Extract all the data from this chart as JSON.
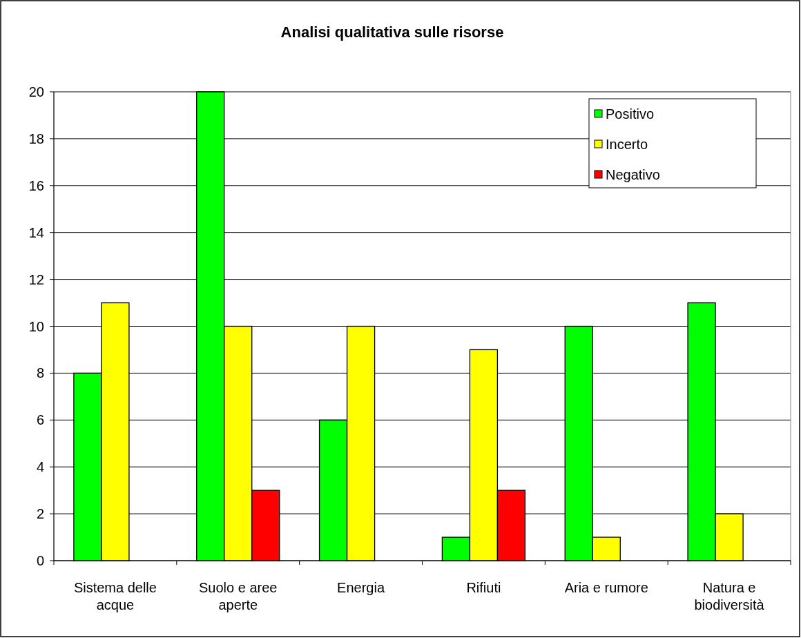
{
  "chart_data": {
    "type": "bar",
    "title": "Analisi qualitativa sulle risorse",
    "categories": [
      "Sistema delle acque",
      "Suolo e aree aperte",
      "Energia",
      "Rifiuti",
      "Aria e rumore",
      "Natura e biodiversità"
    ],
    "series": [
      {
        "name": "Positivo",
        "color": "#00ff00",
        "values": [
          8,
          20,
          6,
          1,
          10,
          11
        ]
      },
      {
        "name": "Incerto",
        "color": "#ffff00",
        "values": [
          11,
          10,
          10,
          9,
          1,
          2
        ]
      },
      {
        "name": "Negativo",
        "color": "#ff0000",
        "values": [
          0,
          3,
          0,
          3,
          0,
          0
        ]
      }
    ],
    "ylim": [
      0,
      20
    ],
    "yticks": [
      0,
      2,
      4,
      6,
      8,
      10,
      12,
      14,
      16,
      18,
      20
    ],
    "grid": "y",
    "legend": "top right"
  }
}
